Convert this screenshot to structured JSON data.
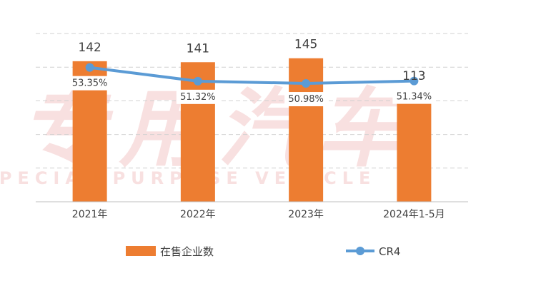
{
  "chart_data": {
    "type": "bar",
    "categories": [
      "2021年",
      "2022年",
      "2023年",
      "2024年1-5月"
    ],
    "series": [
      {
        "name": "在售企业数",
        "type": "bar",
        "values": [
          142,
          141,
          145,
          113
        ],
        "labels": [
          "142",
          "141",
          "145",
          "113"
        ],
        "color": "#ED7D31"
      },
      {
        "name": "CR4",
        "type": "line",
        "values": [
          53.35,
          51.32,
          50.98,
          51.34
        ],
        "labels": [
          "53.35%",
          "51.32%",
          "50.98%",
          "51.34%"
        ],
        "color": "#5B9BD5"
      }
    ],
    "ylim": [
      0,
      170
    ],
    "y2lim": [
      33.4,
      58.4
    ],
    "grid": true,
    "legend_position": "bottom"
  },
  "watermark": {
    "text": "专用汽车",
    "subtext": "SPECIAL PURPOSE VEHICLE",
    "color": "#F3C7C7"
  }
}
